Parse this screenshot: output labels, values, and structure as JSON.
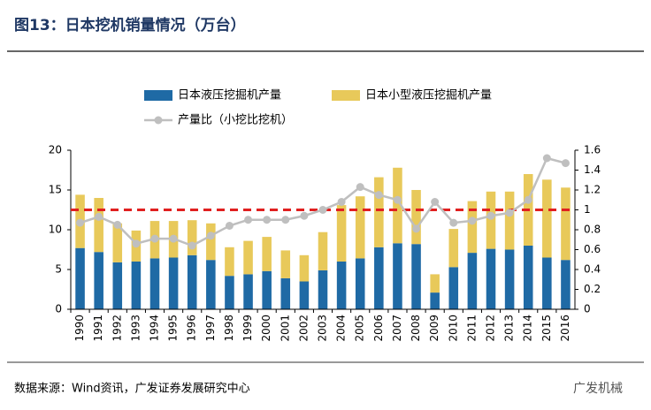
{
  "chart_data": {
    "type": "bar",
    "stacked": true,
    "title": "图13：日本挖机销量情况（万台）",
    "categories": [
      "1990",
      "1991",
      "1992",
      "1993",
      "1994",
      "1995",
      "1996",
      "1997",
      "1998",
      "1999",
      "2000",
      "2001",
      "2002",
      "2003",
      "2004",
      "2005",
      "2006",
      "2007",
      "2008",
      "2009",
      "2010",
      "2011",
      "2012",
      "2013",
      "2014",
      "2015",
      "2016"
    ],
    "series": [
      {
        "name": "日本液压挖掘机产量",
        "color": "#1f6aa5",
        "values": [
          7.7,
          7.2,
          5.9,
          6.0,
          6.4,
          6.5,
          6.8,
          6.2,
          4.2,
          4.4,
          4.8,
          3.9,
          3.5,
          4.9,
          6.0,
          6.4,
          7.8,
          8.3,
          8.2,
          2.1,
          5.3,
          7.1,
          7.6,
          7.5,
          8.0,
          6.5,
          6.2
        ]
      },
      {
        "name": "日本小型液压挖掘机产量",
        "color": "#e8c95a",
        "values": [
          6.7,
          6.8,
          4.9,
          3.9,
          4.7,
          4.6,
          4.4,
          4.6,
          3.6,
          4.2,
          4.3,
          3.5,
          3.3,
          4.8,
          7.1,
          7.8,
          8.8,
          9.5,
          6.8,
          2.3,
          4.8,
          6.5,
          7.2,
          7.3,
          9.0,
          9.8,
          9.1
        ]
      },
      {
        "name": "产量比（小挖比挖机）",
        "color": "#bfbfbf",
        "type": "line",
        "axis": "y2",
        "values": [
          0.87,
          0.93,
          0.85,
          0.66,
          0.71,
          0.71,
          0.64,
          0.74,
          0.84,
          0.9,
          0.9,
          0.9,
          0.94,
          1.0,
          1.08,
          1.23,
          1.15,
          1.1,
          0.81,
          1.08,
          0.87,
          0.89,
          0.94,
          0.97,
          1.1,
          1.52,
          1.47
        ]
      }
    ],
    "ylim": [
      0,
      20
    ],
    "yticks": [
      0,
      5,
      10,
      15,
      20
    ],
    "y2lim": [
      0,
      1.6
    ],
    "y2ticks": [
      0,
      0.2,
      0.4,
      0.6,
      0.8,
      1,
      1.2,
      1.4,
      1.6
    ],
    "reference_line": {
      "value": 1,
      "axis": "y2",
      "color": "#e02020"
    },
    "source": "数据来源：Wind资讯，广发证券发展研究中心",
    "watermark": "广发机械"
  }
}
